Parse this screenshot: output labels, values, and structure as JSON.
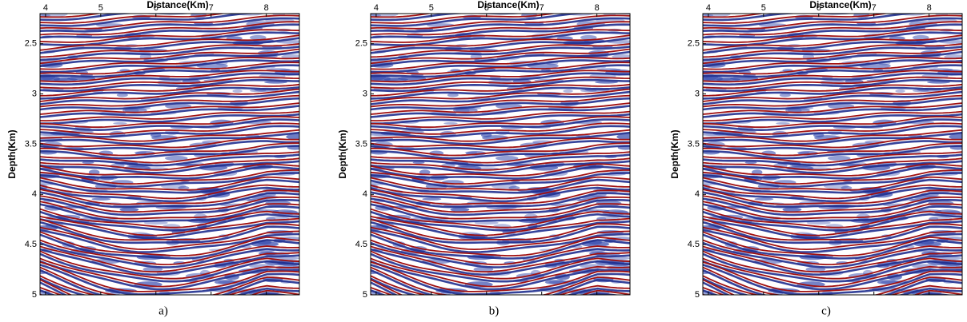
{
  "chart_data": [
    {
      "type": "image",
      "xlabel": "Distance(Km)",
      "ylabel": "Depth(Km)",
      "xlim": [
        3.9,
        8.6
      ],
      "ylim": [
        2.2,
        5
      ],
      "xticks": [
        4,
        5,
        6,
        7,
        8
      ],
      "yticks": [
        2.5,
        3,
        3.5,
        4,
        4.5,
        5
      ],
      "caption": "a)"
    },
    {
      "type": "image",
      "xlabel": "Distance(Km)",
      "ylabel": "Depth(Km)",
      "xlim": [
        3.9,
        8.6
      ],
      "ylim": [
        2.2,
        5
      ],
      "xticks": [
        4,
        5,
        6,
        7,
        8
      ],
      "yticks": [
        2.5,
        3,
        3.5,
        4,
        4.5,
        5
      ],
      "caption": "b)"
    },
    {
      "type": "image",
      "xlabel": "Distance(Km)",
      "ylabel": "Depth(Km)",
      "xlim": [
        3.9,
        8.6
      ],
      "ylim": [
        2.2,
        5
      ],
      "xticks": [
        4,
        5,
        6,
        7,
        8
      ],
      "yticks": [
        2.5,
        3,
        3.5,
        4,
        4.5,
        5
      ],
      "caption": "c)"
    }
  ]
}
